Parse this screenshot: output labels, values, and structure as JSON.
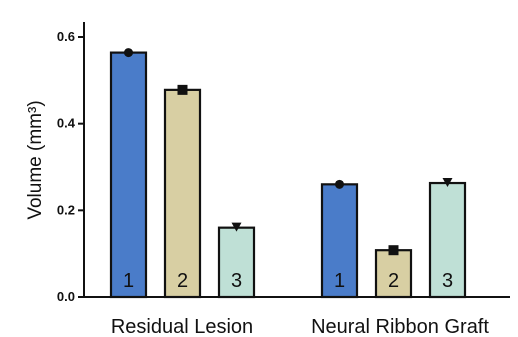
{
  "chart_data": {
    "type": "bar",
    "ylabel": "Volume (mm³)",
    "ylim": [
      0,
      0.6
    ],
    "yticks": [
      "0.0",
      "0.2",
      "0.4",
      "0.6"
    ],
    "groups": [
      "Residual Lesion",
      "Neural Ribbon Graft"
    ],
    "series": [
      {
        "bar_label": "1",
        "color": "#4a7cc9",
        "marker": "circle",
        "values": [
          0.564,
          0.26
        ]
      },
      {
        "bar_label": "2",
        "color": "#d8cfa3",
        "marker": "square",
        "values": [
          0.478,
          0.108
        ]
      },
      {
        "bar_label": "3",
        "color": "#bfe0d6",
        "marker": "triangle-down",
        "values": [
          0.16,
          0.263
        ]
      }
    ],
    "grid": false,
    "legend": "none"
  }
}
